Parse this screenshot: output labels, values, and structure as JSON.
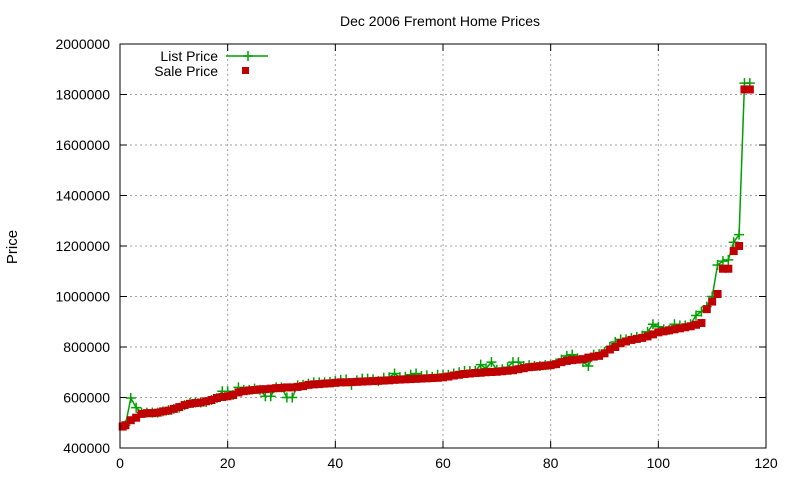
{
  "chart_data": {
    "type": "scatter",
    "title": "Dec 2006 Fremont Home Prices",
    "xlabel": "",
    "ylabel": "Price",
    "xlim": [
      0,
      120
    ],
    "ylim": [
      400000,
      2000000
    ],
    "xticks": [
      0,
      20,
      40,
      60,
      80,
      100,
      120
    ],
    "yticks": [
      400000,
      600000,
      800000,
      1000000,
      1200000,
      1400000,
      1600000,
      1800000,
      2000000
    ],
    "xtick_labels": [
      "0",
      "20",
      "40",
      "60",
      "80",
      "100",
      "120"
    ],
    "ytick_labels": [
      "400000",
      "600000",
      "800000",
      "1000000",
      "1200000",
      "1400000",
      "1600000",
      "1800000",
      "2000000"
    ],
    "grid": true,
    "legend": "top-left",
    "colors": {
      "list": "#00a000",
      "sale": "#c00000",
      "grid": "#a0a0a0"
    },
    "series": [
      {
        "name": "List Price",
        "marker": "plus-line",
        "points": [
          [
            1,
            490000
          ],
          [
            2,
            598000
          ],
          [
            3,
            560000
          ],
          [
            4,
            540000
          ],
          [
            5,
            540000
          ],
          [
            6,
            540000
          ],
          [
            7,
            540000
          ],
          [
            8,
            545000
          ],
          [
            9,
            550000
          ],
          [
            10,
            555000
          ],
          [
            11,
            560000
          ],
          [
            12,
            570000
          ],
          [
            13,
            578000
          ],
          [
            14,
            580000
          ],
          [
            15,
            580000
          ],
          [
            16,
            582000
          ],
          [
            17,
            590000
          ],
          [
            18,
            598000
          ],
          [
            19,
            625000
          ],
          [
            20,
            625000
          ],
          [
            21,
            610000
          ],
          [
            22,
            640000
          ],
          [
            23,
            630000
          ],
          [
            24,
            630000
          ],
          [
            25,
            635000
          ],
          [
            26,
            630000
          ],
          [
            27,
            605000
          ],
          [
            28,
            605000
          ],
          [
            29,
            640000
          ],
          [
            30,
            640000
          ],
          [
            31,
            600000
          ],
          [
            32,
            600000
          ],
          [
            33,
            648000
          ],
          [
            34,
            650000
          ],
          [
            35,
            655000
          ],
          [
            36,
            660000
          ],
          [
            37,
            660000
          ],
          [
            38,
            660000
          ],
          [
            39,
            662000
          ],
          [
            40,
            665000
          ],
          [
            41,
            670000
          ],
          [
            42,
            672000
          ],
          [
            43,
            650000
          ],
          [
            44,
            668000
          ],
          [
            45,
            675000
          ],
          [
            46,
            675000
          ],
          [
            47,
            672000
          ],
          [
            48,
            665000
          ],
          [
            49,
            678000
          ],
          [
            50,
            680000
          ],
          [
            51,
            695000
          ],
          [
            52,
            680000
          ],
          [
            53,
            682000
          ],
          [
            54,
            690000
          ],
          [
            55,
            695000
          ],
          [
            56,
            685000
          ],
          [
            57,
            688000
          ],
          [
            58,
            682000
          ],
          [
            59,
            690000
          ],
          [
            60,
            690000
          ],
          [
            61,
            690000
          ],
          [
            62,
            695000
          ],
          [
            63,
            700000
          ],
          [
            64,
            705000
          ],
          [
            65,
            705000
          ],
          [
            66,
            705000
          ],
          [
            67,
            730000
          ],
          [
            68,
            715000
          ],
          [
            69,
            740000
          ],
          [
            70,
            710000
          ],
          [
            71,
            712000
          ],
          [
            72,
            720000
          ],
          [
            73,
            740000
          ],
          [
            74,
            740000
          ],
          [
            75,
            725000
          ],
          [
            76,
            728000
          ],
          [
            77,
            725000
          ],
          [
            78,
            725000
          ],
          [
            79,
            728000
          ],
          [
            80,
            730000
          ],
          [
            81,
            735000
          ],
          [
            82,
            750000
          ],
          [
            83,
            765000
          ],
          [
            84,
            770000
          ],
          [
            85,
            755000
          ],
          [
            86,
            740000
          ],
          [
            87,
            725000
          ],
          [
            88,
            770000
          ],
          [
            89,
            772000
          ],
          [
            90,
            780000
          ],
          [
            91,
            800000
          ],
          [
            92,
            820000
          ],
          [
            93,
            830000
          ],
          [
            94,
            830000
          ],
          [
            95,
            835000
          ],
          [
            96,
            840000
          ],
          [
            97,
            845000
          ],
          [
            98,
            860000
          ],
          [
            99,
            890000
          ],
          [
            100,
            880000
          ],
          [
            101,
            870000
          ],
          [
            102,
            868000
          ],
          [
            103,
            890000
          ],
          [
            104,
            885000
          ],
          [
            105,
            885000
          ],
          [
            106,
            890000
          ],
          [
            107,
            925000
          ],
          [
            108,
            940000
          ],
          [
            109,
            960000
          ],
          [
            110,
            1000000
          ],
          [
            111,
            1125000
          ],
          [
            112,
            1140000
          ],
          [
            113,
            1145000
          ],
          [
            114,
            1215000
          ],
          [
            115,
            1245000
          ],
          [
            116,
            1845000
          ],
          [
            117,
            1845000
          ]
        ]
      },
      {
        "name": "Sale Price",
        "marker": "square",
        "points": [
          [
            0.5,
            485000
          ],
          [
            1,
            490000
          ],
          [
            2,
            510000
          ],
          [
            3,
            520000
          ],
          [
            4,
            535000
          ],
          [
            5,
            538000
          ],
          [
            6,
            538000
          ],
          [
            7,
            540000
          ],
          [
            8,
            545000
          ],
          [
            9,
            548000
          ],
          [
            10,
            555000
          ],
          [
            11,
            562000
          ],
          [
            12,
            570000
          ],
          [
            13,
            575000
          ],
          [
            14,
            578000
          ],
          [
            15,
            580000
          ],
          [
            16,
            585000
          ],
          [
            17,
            590000
          ],
          [
            18,
            598000
          ],
          [
            19,
            602000
          ],
          [
            20,
            605000
          ],
          [
            21,
            610000
          ],
          [
            22,
            620000
          ],
          [
            23,
            625000
          ],
          [
            24,
            628000
          ],
          [
            25,
            630000
          ],
          [
            26,
            632000
          ],
          [
            27,
            633000
          ],
          [
            28,
            635000
          ],
          [
            29,
            637000
          ],
          [
            30,
            638000
          ],
          [
            31,
            640000
          ],
          [
            32,
            640000
          ],
          [
            33,
            642000
          ],
          [
            34,
            645000
          ],
          [
            35,
            650000
          ],
          [
            36,
            652000
          ],
          [
            37,
            653000
          ],
          [
            38,
            655000
          ],
          [
            39,
            656000
          ],
          [
            40,
            658000
          ],
          [
            41,
            660000
          ],
          [
            42,
            660000
          ],
          [
            43,
            661000
          ],
          [
            44,
            662000
          ],
          [
            45,
            663000
          ],
          [
            46,
            664000
          ],
          [
            47,
            665000
          ],
          [
            48,
            666000
          ],
          [
            49,
            667000
          ],
          [
            50,
            668000
          ],
          [
            51,
            670000
          ],
          [
            52,
            671000
          ],
          [
            53,
            672000
          ],
          [
            54,
            673000
          ],
          [
            55,
            674000
          ],
          [
            56,
            675000
          ],
          [
            57,
            676000
          ],
          [
            58,
            677000
          ],
          [
            59,
            678000
          ],
          [
            60,
            680000
          ],
          [
            61,
            683000
          ],
          [
            62,
            687000
          ],
          [
            63,
            690000
          ],
          [
            64,
            693000
          ],
          [
            65,
            695000
          ],
          [
            66,
            697000
          ],
          [
            67,
            698000
          ],
          [
            68,
            700000
          ],
          [
            69,
            701000
          ],
          [
            70,
            702000
          ],
          [
            71,
            704000
          ],
          [
            72,
            706000
          ],
          [
            73,
            708000
          ],
          [
            74,
            712000
          ],
          [
            75,
            716000
          ],
          [
            76,
            720000
          ],
          [
            77,
            722000
          ],
          [
            78,
            724000
          ],
          [
            79,
            726000
          ],
          [
            80,
            728000
          ],
          [
            81,
            732000
          ],
          [
            82,
            740000
          ],
          [
            83,
            745000
          ],
          [
            84,
            748000
          ],
          [
            85,
            750000
          ],
          [
            86,
            752000
          ],
          [
            87,
            758000
          ],
          [
            88,
            762000
          ],
          [
            89,
            765000
          ],
          [
            90,
            775000
          ],
          [
            91,
            790000
          ],
          [
            92,
            800000
          ],
          [
            93,
            815000
          ],
          [
            94,
            822000
          ],
          [
            95,
            828000
          ],
          [
            96,
            832000
          ],
          [
            97,
            836000
          ],
          [
            98,
            842000
          ],
          [
            99,
            850000
          ],
          [
            100,
            858000
          ],
          [
            101,
            862000
          ],
          [
            102,
            866000
          ],
          [
            103,
            870000
          ],
          [
            104,
            874000
          ],
          [
            105,
            878000
          ],
          [
            106,
            882000
          ],
          [
            107,
            888000
          ],
          [
            108,
            895000
          ],
          [
            109,
            950000
          ],
          [
            110,
            980000
          ],
          [
            111,
            1010000
          ],
          [
            112,
            1110000
          ],
          [
            113,
            1110000
          ],
          [
            114,
            1180000
          ],
          [
            115,
            1200000
          ],
          [
            116,
            1820000
          ],
          [
            117,
            1820000
          ]
        ]
      }
    ]
  }
}
